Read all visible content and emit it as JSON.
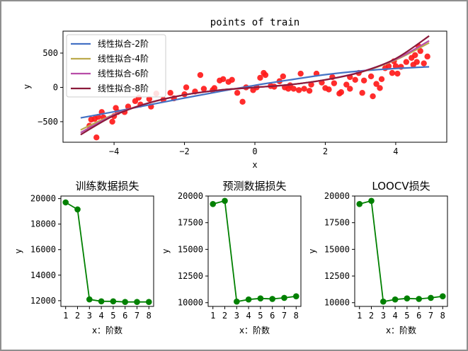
{
  "chart_data": [
    {
      "type": "scatter",
      "title": "points of train",
      "xlabel": "x",
      "ylabel": "y",
      "xlim": [
        -5.45,
        5.45
      ],
      "ylim": [
        -800,
        820
      ],
      "xticks": [
        -4,
        -2,
        0,
        2,
        4
      ],
      "yticks": [
        -500,
        0,
        500
      ],
      "grid": false,
      "legend_position": "top-left",
      "points": [
        [
          -4.7,
          -560
        ],
        [
          -4.65,
          -470
        ],
        [
          -4.5,
          -730
        ],
        [
          -4.45,
          -430
        ],
        [
          -4.35,
          -360
        ],
        [
          -4.3,
          -440
        ],
        [
          -4.05,
          -500
        ],
        [
          -4.0,
          -420
        ],
        [
          -3.95,
          -300
        ],
        [
          -3.9,
          -360
        ],
        [
          -3.7,
          -360
        ],
        [
          -3.6,
          -280
        ],
        [
          -3.4,
          -200
        ],
        [
          -3.3,
          -150
        ],
        [
          -3.0,
          -170
        ],
        [
          -2.95,
          -280
        ],
        [
          -2.6,
          -180
        ],
        [
          -2.4,
          -80
        ],
        [
          -2.3,
          -160
        ],
        [
          -2.0,
          -100
        ],
        [
          -1.95,
          0
        ],
        [
          -1.7,
          -60
        ],
        [
          -1.55,
          180
        ],
        [
          -1.45,
          -20
        ],
        [
          -1.2,
          -40
        ],
        [
          -1.0,
          100
        ],
        [
          -0.9,
          120
        ],
        [
          -0.75,
          80
        ],
        [
          -0.65,
          110
        ],
        [
          -0.5,
          -80
        ],
        [
          -0.35,
          -210
        ],
        [
          -0.25,
          0
        ],
        [
          -0.05,
          -40
        ],
        [
          0.05,
          0
        ],
        [
          0.15,
          140
        ],
        [
          0.25,
          210
        ],
        [
          0.3,
          180
        ],
        [
          0.45,
          20
        ],
        [
          0.55,
          10
        ],
        [
          0.7,
          90
        ],
        [
          0.85,
          0
        ],
        [
          0.95,
          -20
        ],
        [
          1.0,
          30
        ],
        [
          1.1,
          -20
        ],
        [
          1.25,
          -40
        ],
        [
          1.3,
          200
        ],
        [
          1.4,
          -20
        ],
        [
          1.6,
          40
        ],
        [
          1.75,
          200
        ],
        [
          1.9,
          70
        ],
        [
          2.0,
          -10
        ],
        [
          2.1,
          -30
        ],
        [
          2.2,
          150
        ],
        [
          2.4,
          -90
        ],
        [
          2.45,
          -70
        ],
        [
          2.6,
          40
        ],
        [
          2.7,
          -20
        ],
        [
          2.85,
          110
        ],
        [
          2.95,
          210
        ],
        [
          3.05,
          -80
        ],
        [
          3.1,
          100
        ],
        [
          3.3,
          160
        ],
        [
          3.45,
          50
        ],
        [
          3.55,
          -10
        ],
        [
          3.6,
          120
        ],
        [
          3.7,
          280
        ],
        [
          3.8,
          310
        ],
        [
          3.9,
          210
        ],
        [
          4.0,
          310
        ],
        [
          4.05,
          200
        ],
        [
          4.15,
          300
        ],
        [
          4.3,
          370
        ],
        [
          4.45,
          430
        ],
        [
          4.5,
          330
        ],
        [
          4.55,
          470
        ],
        [
          4.6,
          370
        ],
        [
          4.65,
          600
        ],
        [
          4.7,
          530
        ],
        [
          4.8,
          350
        ],
        [
          4.9,
          450
        ],
        [
          -4.55,
          -460
        ],
        [
          -2.8,
          -90
        ],
        [
          -1.15,
          -10
        ],
        [
          0.8,
          160
        ],
        [
          2.25,
          60
        ],
        [
          3.35,
          -130
        ],
        [
          -3.25,
          -250
        ],
        [
          1.55,
          -50
        ],
        [
          2.7,
          150
        ],
        [
          3.95,
          380
        ]
      ],
      "series": [
        {
          "name": "线性拟合-2阶",
          "color": "#4472c4",
          "x": [
            -4.95,
            -4,
            -3,
            -2,
            -1,
            0,
            1,
            2,
            3,
            4,
            4.95
          ],
          "y": [
            -445,
            -355,
            -255,
            -155,
            -60,
            30,
            110,
            185,
            240,
            275,
            300
          ]
        },
        {
          "name": "线性拟合-4阶",
          "color": "#bcaa4d",
          "x": [
            -4.95,
            -4,
            -3,
            -2,
            -1,
            0,
            1,
            2,
            3,
            4,
            4.95
          ],
          "y": [
            -620,
            -395,
            -225,
            -110,
            -40,
            0,
            40,
            110,
            220,
            400,
            650
          ]
        },
        {
          "name": "线性拟合-6阶",
          "color": "#b84da8",
          "x": [
            -4.95,
            -4,
            -3,
            -2,
            -1,
            0,
            1,
            2,
            3,
            4,
            4.95
          ],
          "y": [
            -660,
            -400,
            -225,
            -110,
            -40,
            0,
            40,
            110,
            225,
            410,
            680
          ]
        },
        {
          "name": "线性拟合-8阶",
          "color": "#8b1a3a",
          "x": [
            -4.95,
            -4,
            -3,
            -2,
            -1,
            0,
            1,
            2,
            3,
            4,
            4.95
          ],
          "y": [
            -690,
            -410,
            -225,
            -110,
            -40,
            0,
            40,
            110,
            220,
            420,
            750
          ]
        }
      ]
    },
    {
      "type": "line",
      "title": "训练数据损失",
      "xlabel": "x：阶数",
      "ylabel": "y",
      "x": [
        1,
        2,
        3,
        4,
        5,
        6,
        7,
        8
      ],
      "values": [
        19700,
        19150,
        12100,
        11950,
        11950,
        11900,
        11900,
        11900
      ],
      "xlim": [
        0.6,
        8.4
      ],
      "ylim": [
        11550,
        20200
      ],
      "yticks": [
        12000,
        14000,
        16000,
        18000,
        20000
      ],
      "color": "#008000"
    },
    {
      "type": "line",
      "title": "预测数据损失",
      "xlabel": "x：阶数",
      "ylabel": "y",
      "x": [
        1,
        2,
        3,
        4,
        5,
        6,
        7,
        8
      ],
      "values": [
        19250,
        19550,
        10100,
        10300,
        10400,
        10350,
        10450,
        10600
      ],
      "xlim": [
        0.6,
        8.4
      ],
      "ylim": [
        9650,
        20000
      ],
      "yticks": [
        10000,
        12500,
        15000,
        17500,
        20000
      ],
      "color": "#008000"
    },
    {
      "type": "line",
      "title": "LOOCV损失",
      "xlabel": "x：阶数",
      "ylabel": "y",
      "x": [
        1,
        2,
        3,
        4,
        5,
        6,
        7,
        8
      ],
      "values": [
        19250,
        19550,
        10100,
        10300,
        10400,
        10350,
        10450,
        10600
      ],
      "xlim": [
        0.6,
        8.4
      ],
      "ylim": [
        9650,
        20000
      ],
      "yticks": [
        10000,
        12500,
        15000,
        17500,
        20000
      ],
      "color": "#008000"
    }
  ]
}
